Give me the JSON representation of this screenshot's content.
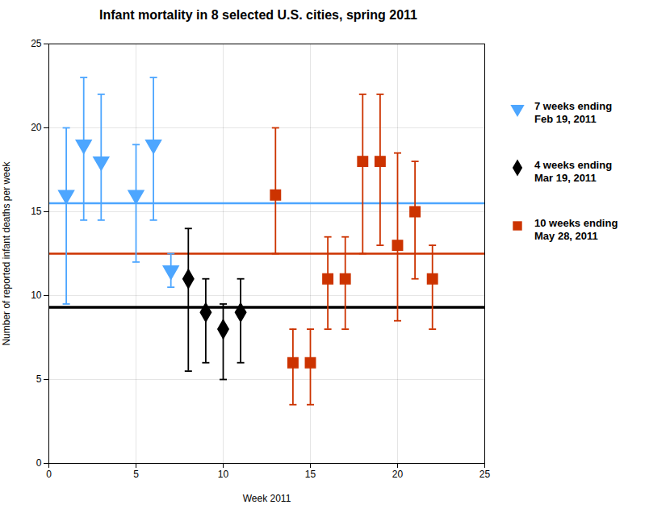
{
  "chart_data": {
    "type": "scatter",
    "title": "Infant mortality in 8 selected U.S. cities, spring 2011",
    "xlabel": "Week 2011",
    "ylabel": "Number of reported infant deaths per week",
    "xlim": [
      0,
      25
    ],
    "ylim": [
      0,
      25
    ],
    "xticks": [
      0,
      5,
      10,
      15,
      20,
      25
    ],
    "yticks": [
      0,
      5,
      10,
      15,
      20,
      25
    ],
    "grid": true,
    "legend": "right",
    "reference_lines": [
      {
        "y": 15.5,
        "color": "#4DA6FF"
      },
      {
        "y": 12.5,
        "color": "#CC3300"
      },
      {
        "y": 9.3,
        "color": "#000000"
      }
    ],
    "series": [
      {
        "name": "7 weeks ending\nFeb 19, 2011",
        "color": "#4DA6FF",
        "marker": "triangle_down",
        "x": [
          1,
          2,
          3,
          5,
          6,
          7
        ],
        "values": [
          16,
          19,
          18,
          16,
          19,
          11.5
        ],
        "yerr_low": [
          6.5,
          4.5,
          3.5,
          4,
          4.5,
          1
        ],
        "yerr_high": [
          4,
          4,
          4,
          3,
          4,
          1
        ]
      },
      {
        "name": "4 weeks ending\nMar 19, 2011",
        "color": "#000000",
        "marker": "diamond",
        "x": [
          8,
          9,
          10,
          11
        ],
        "values": [
          11,
          9,
          8,
          9
        ],
        "yerr_low": [
          5.5,
          3,
          3,
          3
        ],
        "yerr_high": [
          3,
          2,
          1.5,
          2
        ]
      },
      {
        "name": "10 weeks ending\nMay 28, 2011",
        "color": "#CC3300",
        "marker": "square",
        "x": [
          13,
          14,
          15,
          16,
          17,
          18,
          19,
          20,
          21,
          22
        ],
        "values": [
          16,
          6,
          6,
          11,
          11,
          18,
          18,
          13,
          15,
          11
        ],
        "yerr_low": [
          3.5,
          2.5,
          2.5,
          3,
          3,
          5.5,
          5,
          4.5,
          4,
          3
        ],
        "yerr_high": [
          4,
          2,
          2,
          2.5,
          2.5,
          4,
          4,
          5.5,
          3,
          2
        ]
      }
    ]
  }
}
